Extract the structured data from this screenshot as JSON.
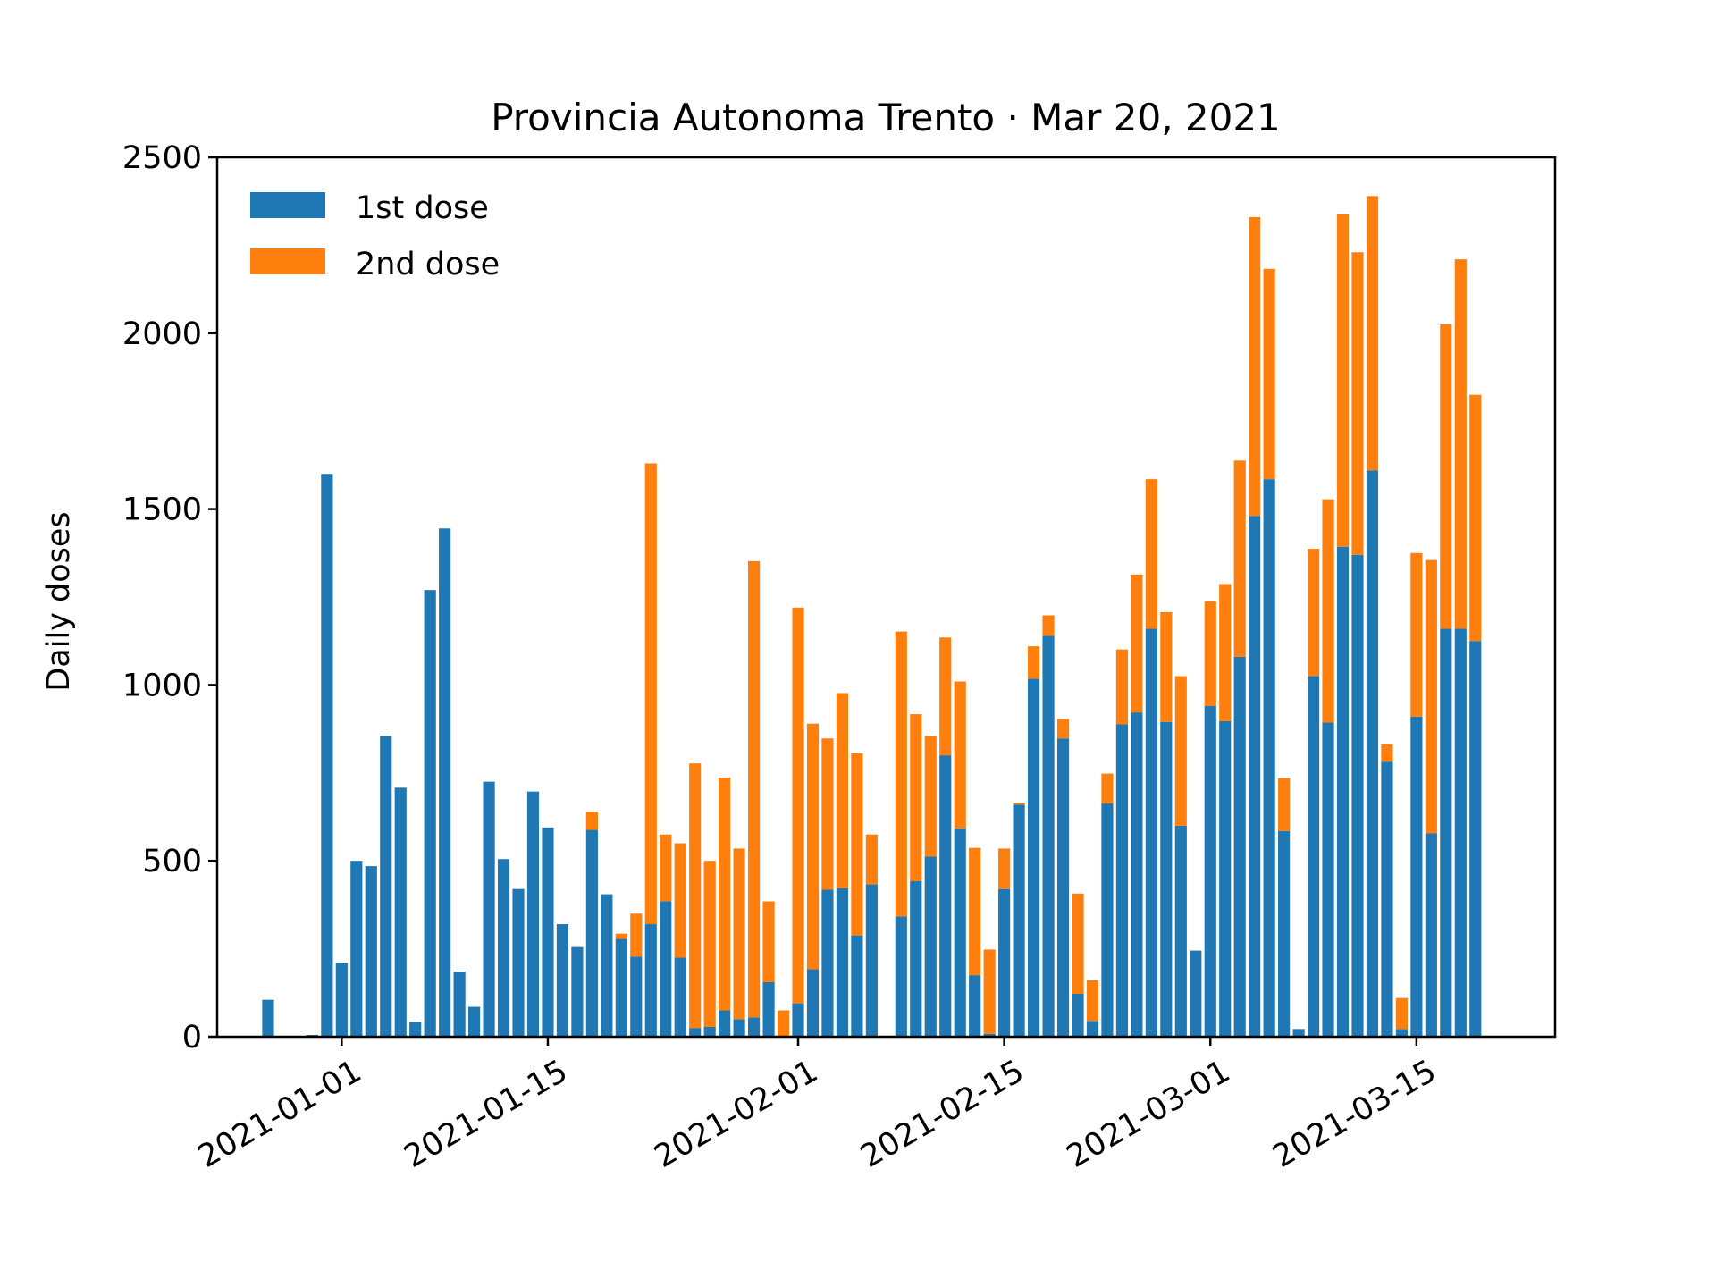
{
  "colors": {
    "first_dose": "#1f77b4",
    "second_dose": "#ff7f0e",
    "axis": "#000000",
    "background": "#ffffff"
  },
  "chart_data": {
    "type": "bar",
    "stacked": true,
    "title": "Provincia Autonoma Trento · Mar 20, 2021",
    "xlabel": "",
    "ylabel": "Daily doses",
    "ylim": [
      0,
      2500
    ],
    "yticks": [
      0,
      500,
      1000,
      1500,
      2000,
      2500
    ],
    "x_ticks": [
      "2021-01-01",
      "2021-01-15",
      "2021-02-01",
      "2021-02-15",
      "2021-03-01",
      "2021-03-15"
    ],
    "xlim": [
      "2020-12-23T13:00",
      "2021-03-24T10:00"
    ],
    "grid": false,
    "legend": {
      "position": "top-left"
    },
    "dates": [
      "2020-12-27",
      "2020-12-28",
      "2020-12-29",
      "2020-12-30",
      "2020-12-31",
      "2021-01-01",
      "2021-01-02",
      "2021-01-03",
      "2021-01-04",
      "2021-01-05",
      "2021-01-06",
      "2021-01-07",
      "2021-01-08",
      "2021-01-09",
      "2021-01-10",
      "2021-01-11",
      "2021-01-12",
      "2021-01-13",
      "2021-01-14",
      "2021-01-15",
      "2021-01-16",
      "2021-01-17",
      "2021-01-18",
      "2021-01-19",
      "2021-01-20",
      "2021-01-21",
      "2021-01-22",
      "2021-01-23",
      "2021-01-24",
      "2021-01-25",
      "2021-01-26",
      "2021-01-27",
      "2021-01-28",
      "2021-01-29",
      "2021-01-30",
      "2021-01-31",
      "2021-02-01",
      "2021-02-02",
      "2021-02-03",
      "2021-02-04",
      "2021-02-05",
      "2021-02-06",
      "2021-02-07",
      "2021-02-08",
      "2021-02-09",
      "2021-02-10",
      "2021-02-11",
      "2021-02-12",
      "2021-02-13",
      "2021-02-14",
      "2021-02-15",
      "2021-02-16",
      "2021-02-17",
      "2021-02-18",
      "2021-02-19",
      "2021-02-20",
      "2021-02-21",
      "2021-02-22",
      "2021-02-23",
      "2021-02-24",
      "2021-02-25",
      "2021-02-26",
      "2021-02-27",
      "2021-02-28",
      "2021-03-01",
      "2021-03-02",
      "2021-03-03",
      "2021-03-04",
      "2021-03-05",
      "2021-03-06",
      "2021-03-07",
      "2021-03-08",
      "2021-03-09",
      "2021-03-10",
      "2021-03-11",
      "2021-03-12",
      "2021-03-13",
      "2021-03-14",
      "2021-03-15",
      "2021-03-16",
      "2021-03-17",
      "2021-03-18",
      "2021-03-19"
    ],
    "series": [
      {
        "name": "1st dose",
        "values": [
          105,
          0,
          0,
          5,
          1600,
          210,
          500,
          485,
          855,
          708,
          42,
          1270,
          1445,
          185,
          85,
          725,
          505,
          420,
          697,
          595,
          320,
          255,
          588,
          405,
          278,
          228,
          320,
          385,
          225,
          25,
          28,
          75,
          50,
          55,
          155,
          0,
          95,
          192,
          418,
          422,
          288,
          433,
          0,
          342,
          442,
          512,
          800,
          592,
          175,
          8,
          420,
          660,
          1018,
          1140,
          848,
          122,
          45,
          663,
          888,
          922,
          1160,
          895,
          600,
          245,
          940,
          897,
          1080,
          1480,
          1585,
          585,
          22,
          1025,
          893,
          1393,
          1370,
          1610,
          782,
          22,
          910,
          578,
          1160,
          1160,
          1125
        ]
      },
      {
        "name": "2nd dose",
        "values": [
          0,
          0,
          0,
          0,
          0,
          0,
          0,
          0,
          0,
          0,
          0,
          0,
          0,
          0,
          0,
          0,
          0,
          0,
          0,
          0,
          0,
          0,
          52,
          0,
          15,
          122,
          1310,
          190,
          325,
          752,
          472,
          662,
          485,
          1297,
          230,
          75,
          1125,
          698,
          430,
          555,
          518,
          142,
          0,
          810,
          475,
          343,
          335,
          418,
          362,
          240,
          115,
          5,
          92,
          58,
          55,
          285,
          115,
          85,
          213,
          392,
          425,
          312,
          425,
          0,
          298,
          390,
          558,
          850,
          598,
          150,
          0,
          362,
          635,
          945,
          860,
          780,
          50,
          88,
          465,
          777,
          865,
          1050,
          700
        ]
      }
    ]
  }
}
